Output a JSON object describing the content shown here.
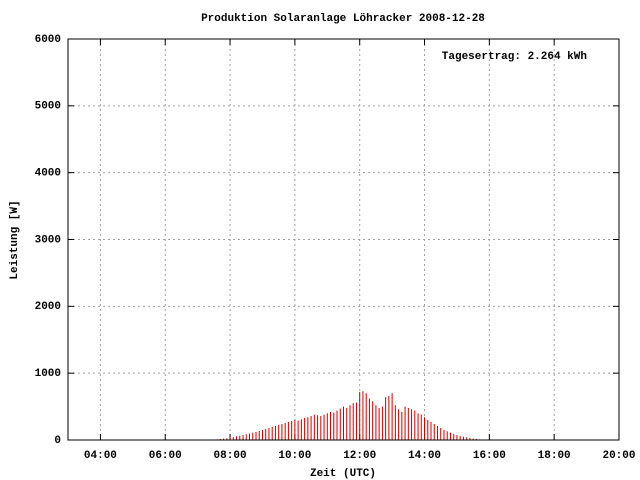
{
  "chart_data": {
    "type": "impulse",
    "title": "Produktion Solaranlage Löhracker 2008-12-28",
    "x_label": "Zeit (UTC)",
    "y_label": "Leistung [W]",
    "annotation": "Tagesertrag: 2.264 kWh",
    "color": "#cc0000",
    "grid": true,
    "xlim": [
      3,
      20
    ],
    "ylim": [
      0,
      6000
    ],
    "xticks": [
      {
        "value": 4,
        "label": "04:00"
      },
      {
        "value": 6,
        "label": "06:00"
      },
      {
        "value": 8,
        "label": "08:00"
      },
      {
        "value": 10,
        "label": "10:00"
      },
      {
        "value": 12,
        "label": "12:00"
      },
      {
        "value": 14,
        "label": "14:00"
      },
      {
        "value": 16,
        "label": "16:00"
      },
      {
        "value": 18,
        "label": "18:00"
      },
      {
        "value": 20,
        "label": "20:00"
      }
    ],
    "yticks": [
      0,
      1000,
      2000,
      3000,
      4000,
      5000,
      6000
    ],
    "x": [
      7.5,
      7.6,
      7.7,
      7.8,
      7.9,
      8.0,
      8.1,
      8.2,
      8.3,
      8.4,
      8.5,
      8.6,
      8.7,
      8.8,
      8.9,
      9.0,
      9.1,
      9.2,
      9.3,
      9.4,
      9.5,
      9.6,
      9.7,
      9.8,
      9.9,
      10.0,
      10.1,
      10.2,
      10.3,
      10.4,
      10.5,
      10.6,
      10.7,
      10.8,
      10.9,
      11.0,
      11.1,
      11.2,
      11.3,
      11.4,
      11.5,
      11.6,
      11.7,
      11.8,
      11.9,
      12.0,
      12.1,
      12.2,
      12.3,
      12.4,
      12.5,
      12.6,
      12.7,
      12.8,
      12.9,
      13.0,
      13.1,
      13.2,
      13.3,
      13.4,
      13.5,
      13.6,
      13.7,
      13.8,
      13.9,
      14.0,
      14.1,
      14.2,
      14.3,
      14.4,
      14.5,
      14.6,
      14.7,
      14.8,
      14.9,
      15.0,
      15.1,
      15.2,
      15.3,
      15.4,
      15.5,
      15.6,
      15.7,
      15.8
    ],
    "values": [
      5,
      10,
      15,
      20,
      25,
      35,
      45,
      55,
      65,
      75,
      85,
      95,
      110,
      120,
      135,
      150,
      165,
      180,
      195,
      210,
      225,
      240,
      255,
      270,
      285,
      300,
      290,
      310,
      330,
      340,
      360,
      380,
      370,
      360,
      380,
      400,
      420,
      410,
      440,
      470,
      500,
      480,
      520,
      550,
      560,
      720,
      730,
      700,
      620,
      580,
      520,
      480,
      500,
      640,
      660,
      700,
      520,
      460,
      420,
      500,
      480,
      460,
      440,
      400,
      380,
      340,
      300,
      270,
      240,
      210,
      180,
      150,
      130,
      110,
      90,
      75,
      60,
      50,
      40,
      30,
      20,
      15,
      10,
      5
    ]
  }
}
